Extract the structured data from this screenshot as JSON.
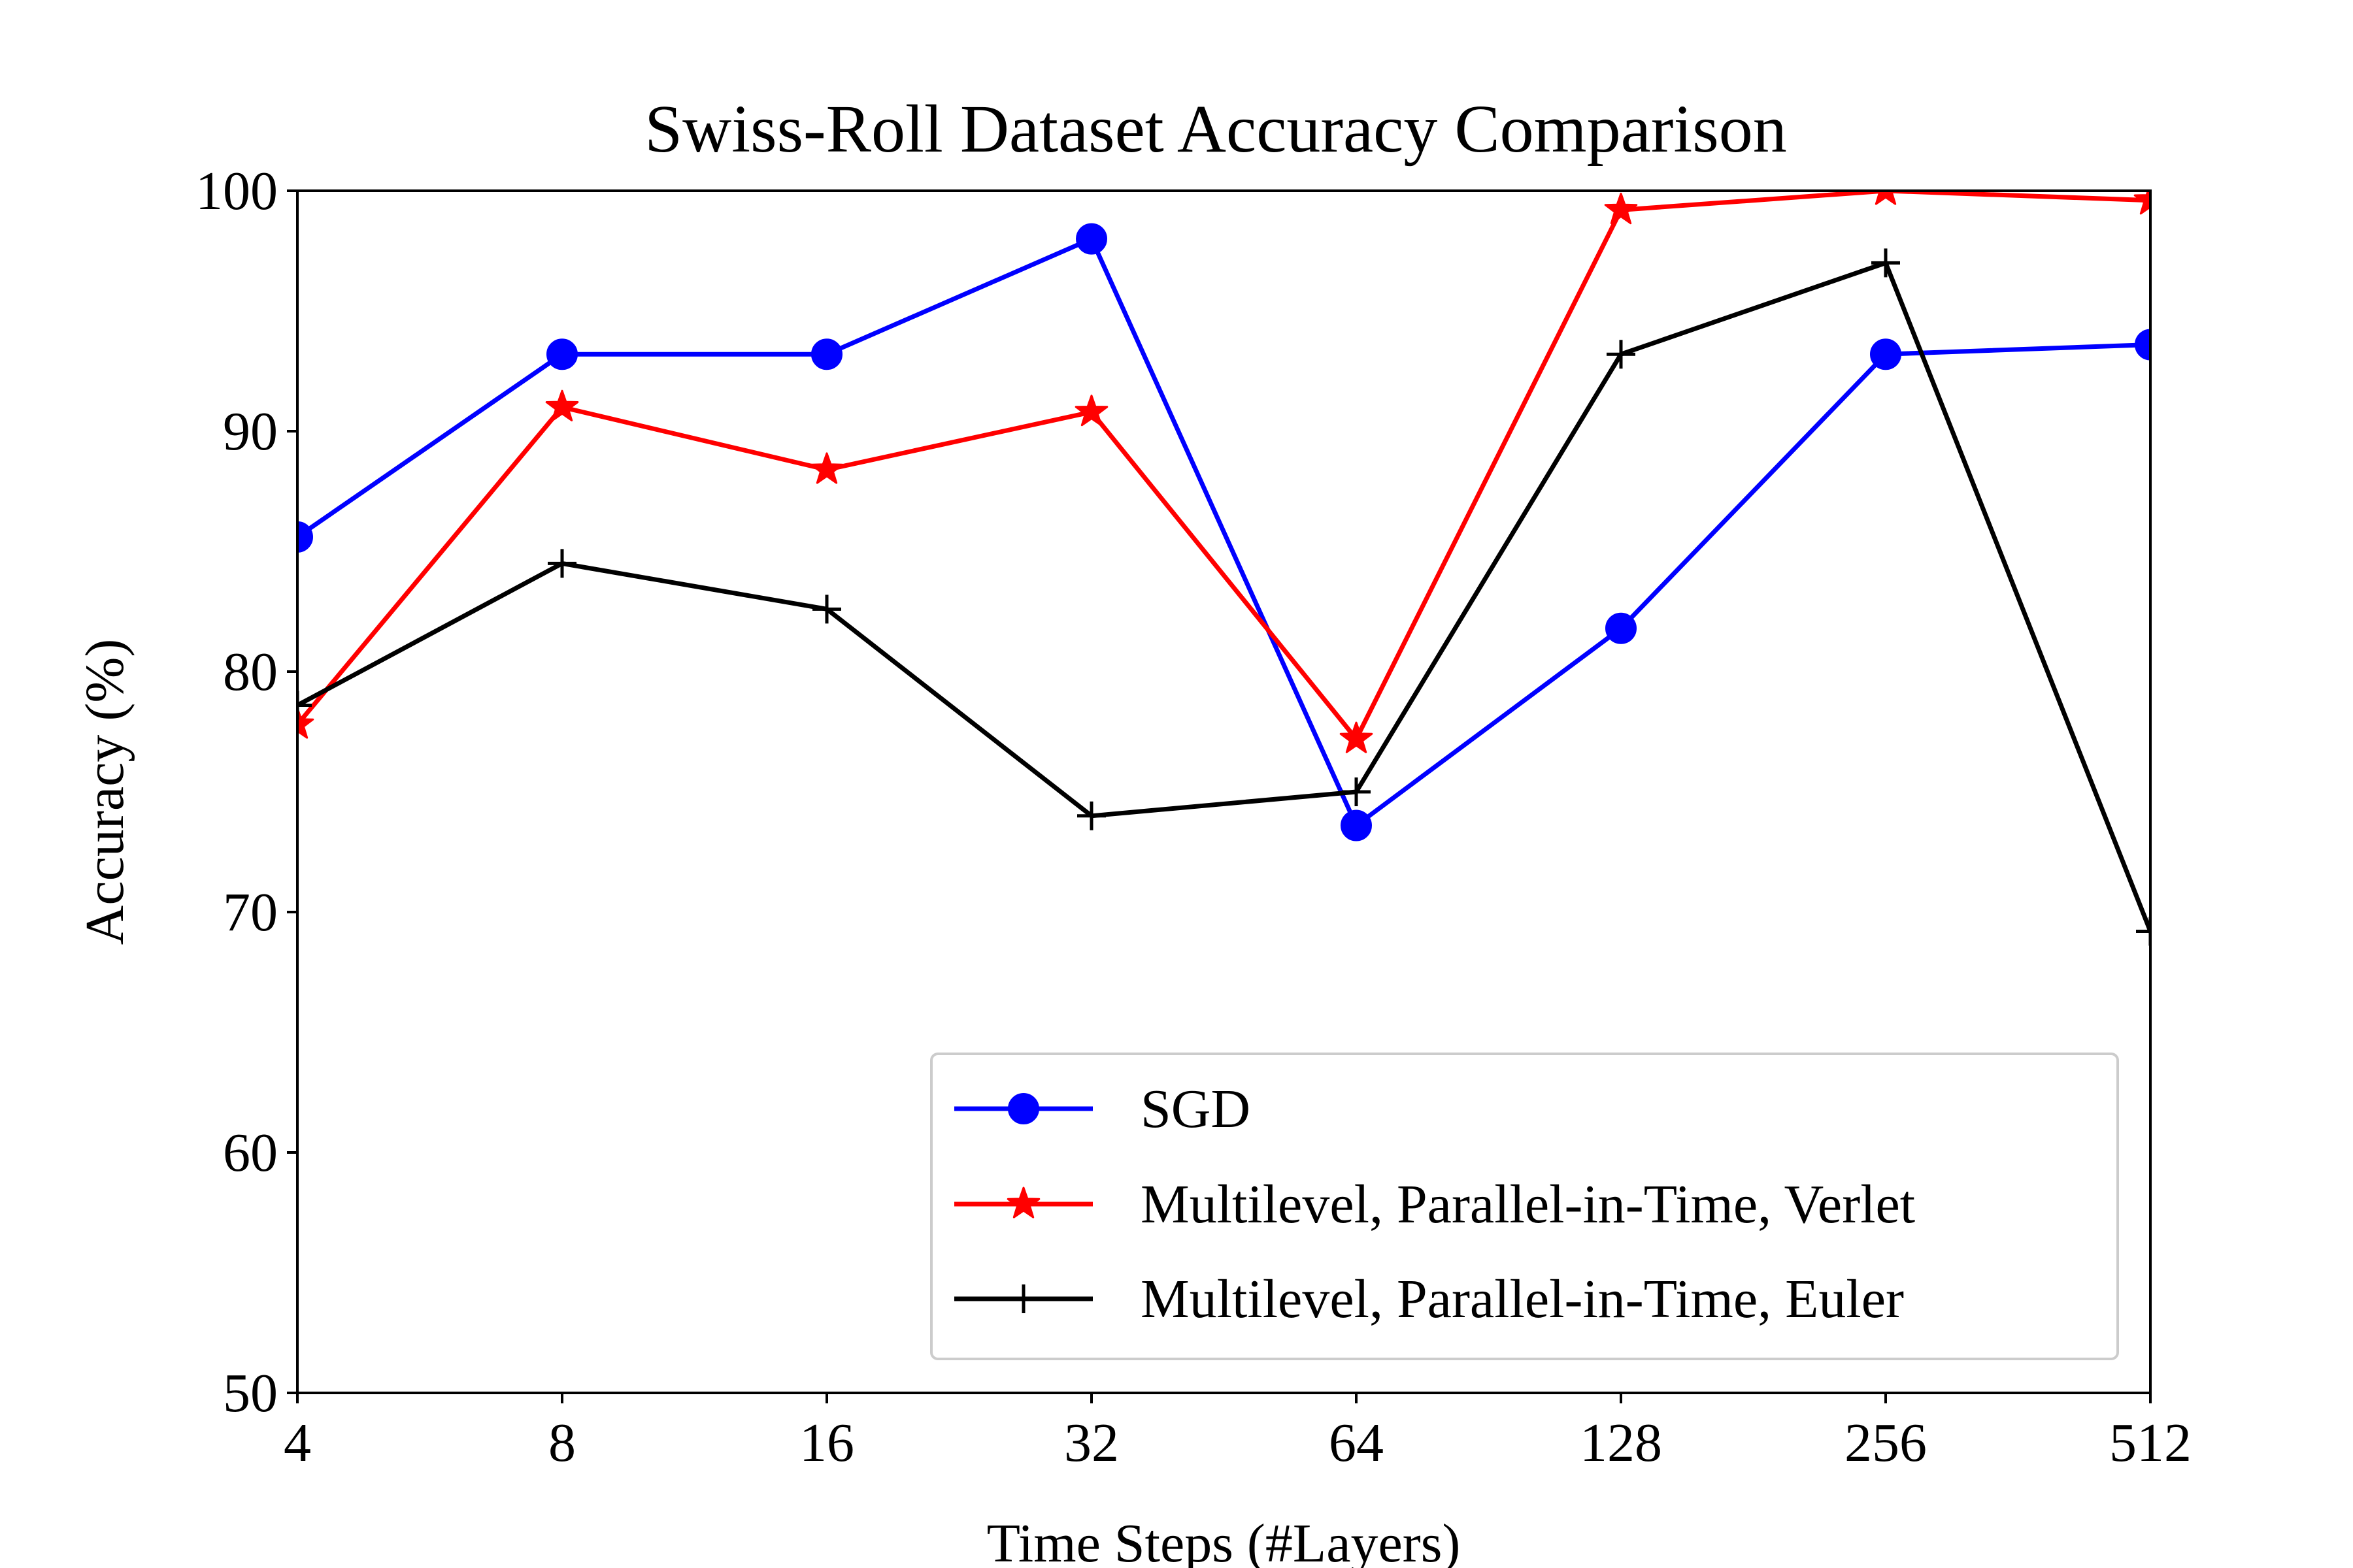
{
  "chart_data": {
    "type": "line",
    "title": "Swiss-Roll Dataset Accuracy Comparison",
    "xlabel": "Time Steps (#Layers)",
    "ylabel": "Accuracy (%)",
    "x_scale": "categorical",
    "categories": [
      "4",
      "8",
      "16",
      "32",
      "64",
      "128",
      "256",
      "512"
    ],
    "ylim": [
      50,
      100
    ],
    "yticks": [
      50,
      60,
      70,
      80,
      90,
      100
    ],
    "grid": false,
    "legend_position": "lower-right",
    "series": [
      {
        "name": "SGD",
        "color": "#0000ff",
        "marker": "circle",
        "values": [
          85.6,
          93.2,
          93.2,
          98.0,
          73.6,
          81.8,
          93.2,
          93.6
        ]
      },
      {
        "name": "Multilevel, Parallel-in-Time, Verlet",
        "color": "#ff0000",
        "marker": "star",
        "values": [
          77.8,
          91.0,
          88.4,
          90.8,
          77.2,
          99.2,
          100.0,
          99.6
        ]
      },
      {
        "name": "Multilevel, Parallel-in-Time, Euler",
        "color": "#000000",
        "marker": "plus",
        "values": [
          78.6,
          84.5,
          82.6,
          74.0,
          75.0,
          93.2,
          97.0,
          69.2
        ]
      }
    ]
  }
}
